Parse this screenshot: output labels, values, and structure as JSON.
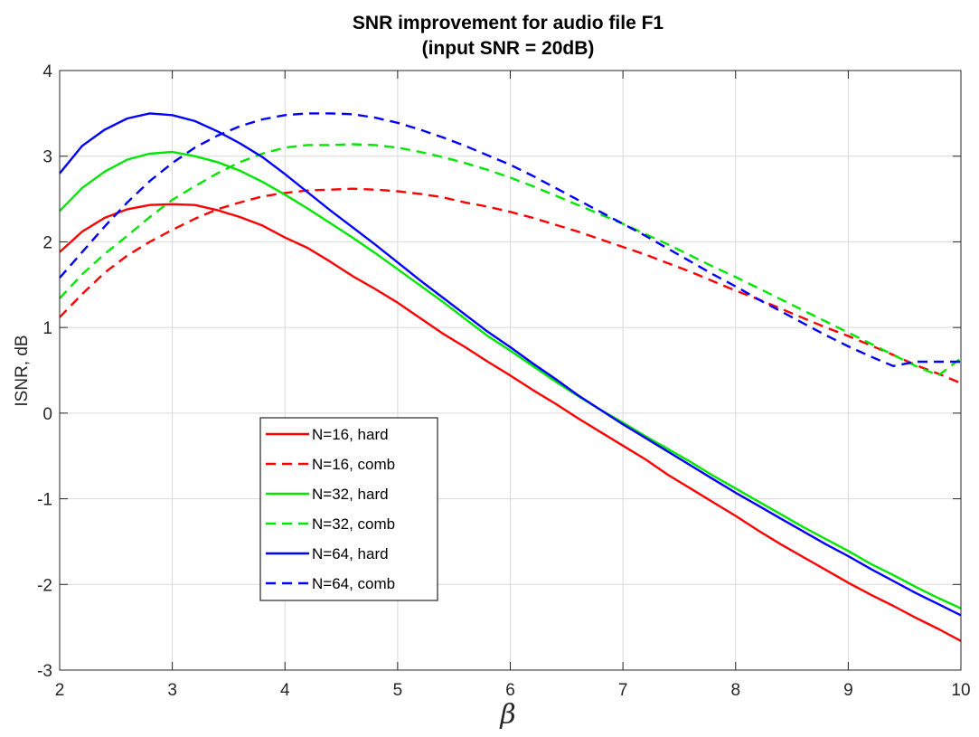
{
  "chart_data": {
    "type": "line",
    "title": [
      "SNR improvement for audio file F1",
      "(input SNR = 20dB)"
    ],
    "xlabel": "β",
    "ylabel": "ISNR, dB",
    "xlim": [
      2,
      10
    ],
    "ylim": [
      -3,
      4
    ],
    "xticks": [
      "2",
      "3",
      "4",
      "5",
      "6",
      "7",
      "8",
      "9",
      "10"
    ],
    "yticks": [
      "-3",
      "-2",
      "-1",
      "0",
      "1",
      "2",
      "3",
      "4"
    ],
    "grid": true,
    "legend_location": "lower-left inside axes",
    "x": [
      2,
      2.2,
      2.4,
      2.6,
      2.8,
      3,
      3.2,
      3.4,
      3.6,
      3.8,
      4,
      4.2,
      4.4,
      4.6,
      4.8,
      5,
      5.2,
      5.4,
      5.6,
      5.8,
      6,
      6.2,
      6.4,
      6.6,
      6.8,
      7,
      7.2,
      7.4,
      7.6,
      7.8,
      8,
      8.2,
      8.4,
      8.6,
      8.8,
      9,
      9.2,
      9.4,
      9.6,
      9.8,
      10
    ],
    "series": [
      {
        "name": "N=16, hard",
        "color": "#ff0000",
        "style": "solid",
        "values": [
          1.88,
          2.12,
          2.28,
          2.38,
          2.43,
          2.44,
          2.43,
          2.37,
          2.29,
          2.19,
          2.05,
          1.93,
          1.77,
          1.6,
          1.45,
          1.29,
          1.11,
          0.93,
          0.77,
          0.6,
          0.44,
          0.27,
          0.11,
          -0.06,
          -0.22,
          -0.38,
          -0.54,
          -0.72,
          -0.88,
          -1.04,
          -1.2,
          -1.37,
          -1.53,
          -1.68,
          -1.83,
          -1.98,
          -2.12,
          -2.25,
          -2.39,
          -2.52,
          -2.66
        ]
      },
      {
        "name": "N=16, comb",
        "color": "#ff0000",
        "style": "dashed",
        "values": [
          1.12,
          1.39,
          1.64,
          1.84,
          2.0,
          2.14,
          2.27,
          2.38,
          2.46,
          2.53,
          2.57,
          2.6,
          2.61,
          2.62,
          2.61,
          2.59,
          2.56,
          2.52,
          2.46,
          2.41,
          2.35,
          2.28,
          2.2,
          2.12,
          2.03,
          1.94,
          1.85,
          1.75,
          1.65,
          1.54,
          1.43,
          1.33,
          1.22,
          1.11,
          1.0,
          0.9,
          0.79,
          0.68,
          0.56,
          0.46,
          0.35
        ]
      },
      {
        "name": "N=32, hard",
        "color": "#00e600",
        "style": "solid",
        "values": [
          2.36,
          2.63,
          2.82,
          2.96,
          3.03,
          3.05,
          3.0,
          2.93,
          2.83,
          2.7,
          2.55,
          2.39,
          2.22,
          2.05,
          1.87,
          1.68,
          1.49,
          1.3,
          1.1,
          0.9,
          0.73,
          0.55,
          0.37,
          0.2,
          0.04,
          -0.11,
          -0.27,
          -0.42,
          -0.57,
          -0.73,
          -0.88,
          -1.03,
          -1.18,
          -1.33,
          -1.47,
          -1.61,
          -1.76,
          -1.89,
          -2.03,
          -2.16,
          -2.28
        ]
      },
      {
        "name": "N=32, comb",
        "color": "#00e600",
        "style": "dashed",
        "values": [
          1.34,
          1.62,
          1.86,
          2.07,
          2.29,
          2.49,
          2.65,
          2.8,
          2.93,
          3.03,
          3.1,
          3.13,
          3.13,
          3.14,
          3.13,
          3.1,
          3.05,
          2.99,
          2.92,
          2.84,
          2.75,
          2.65,
          2.54,
          2.43,
          2.32,
          2.21,
          2.09,
          1.97,
          1.84,
          1.71,
          1.59,
          1.46,
          1.33,
          1.2,
          1.07,
          0.94,
          0.81,
          0.68,
          0.55,
          0.44,
          0.64
        ]
      },
      {
        "name": "N=64, hard",
        "color": "#0000ff",
        "style": "solid",
        "values": [
          2.8,
          3.12,
          3.31,
          3.44,
          3.5,
          3.48,
          3.41,
          3.29,
          3.15,
          2.99,
          2.79,
          2.58,
          2.37,
          2.17,
          1.97,
          1.76,
          1.55,
          1.35,
          1.15,
          0.95,
          0.77,
          0.58,
          0.4,
          0.21,
          0.04,
          -0.13,
          -0.29,
          -0.45,
          -0.61,
          -0.77,
          -0.93,
          -1.08,
          -1.23,
          -1.38,
          -1.53,
          -1.67,
          -1.82,
          -1.96,
          -2.1,
          -2.23,
          -2.36
        ]
      },
      {
        "name": "N=64, comb",
        "color": "#0000ff",
        "style": "dashed",
        "values": [
          1.58,
          1.88,
          2.18,
          2.46,
          2.71,
          2.92,
          3.1,
          3.24,
          3.35,
          3.43,
          3.48,
          3.5,
          3.5,
          3.49,
          3.45,
          3.39,
          3.31,
          3.22,
          3.12,
          3.01,
          2.9,
          2.77,
          2.63,
          2.49,
          2.35,
          2.21,
          2.07,
          1.92,
          1.77,
          1.62,
          1.48,
          1.33,
          1.19,
          1.05,
          0.91,
          0.78,
          0.66,
          0.55,
          0.6,
          0.6,
          0.6
        ]
      }
    ]
  }
}
